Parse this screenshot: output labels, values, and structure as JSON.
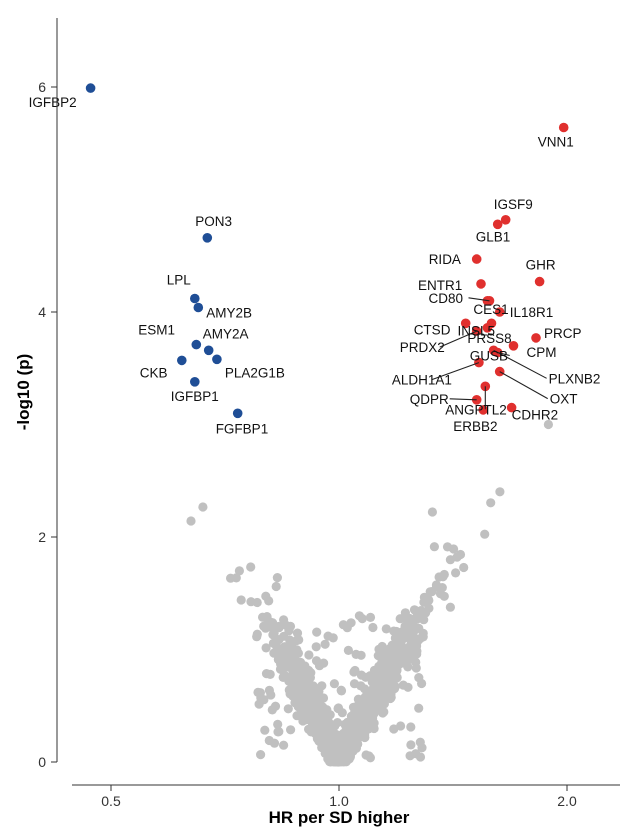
{
  "chart_data": {
    "type": "scatter",
    "xlabel": "HR per SD higher",
    "ylabel": "-log10 (p)",
    "x_scale": "log",
    "x_ticks": [
      0.5,
      1.0,
      2.0
    ],
    "x_tick_labels": [
      "0.5",
      "1.0",
      "2.0"
    ],
    "xlim": [
      0.41,
      2.4
    ],
    "y_ticks": [
      0,
      2,
      4,
      6
    ],
    "y_tick_labels": [
      "0",
      "2",
      "4",
      "6"
    ],
    "ylim": [
      -0.05,
      6.6
    ],
    "grid": false,
    "colors": {
      "non_significant": "#c0c0c0",
      "significant_lower_risk": "#1f4e96",
      "significant_higher_risk": "#e0302e"
    },
    "series": [
      {
        "color": "#1f4e96",
        "points": [
          {
            "label": "IGFBP2",
            "x": 0.47,
            "y": 5.99
          },
          {
            "label": "PON3",
            "x": 0.67,
            "y": 4.66
          },
          {
            "label": "LPL",
            "x": 0.645,
            "y": 4.12
          },
          {
            "label": "AMY2B",
            "x": 0.652,
            "y": 4.04
          },
          {
            "label": "ESM1",
            "x": 0.648,
            "y": 3.71
          },
          {
            "label": "AMY2A",
            "x": 0.673,
            "y": 3.66
          },
          {
            "label": "CKB",
            "x": 0.62,
            "y": 3.57
          },
          {
            "label": "PLA2G1B",
            "x": 0.69,
            "y": 3.58
          },
          {
            "label": "IGFBP1",
            "x": 0.645,
            "y": 3.38
          },
          {
            "label": "FGFBP1",
            "x": 0.735,
            "y": 3.1
          }
        ]
      },
      {
        "color": "#e0302e",
        "points": [
          {
            "label": "VNN1",
            "x": 1.98,
            "y": 5.64
          },
          {
            "label": "IGSF9",
            "x": 1.66,
            "y": 4.82
          },
          {
            "label": "GLB1",
            "x": 1.62,
            "y": 4.78
          },
          {
            "label": "RIDA",
            "x": 1.52,
            "y": 4.47
          },
          {
            "label": "GHR",
            "x": 1.84,
            "y": 4.27
          },
          {
            "label": "ENTR1",
            "x": 1.54,
            "y": 4.25
          },
          {
            "label": "CES1",
            "x": 1.57,
            "y": 4.1
          },
          {
            "label": "IL18R1",
            "x": 1.63,
            "y": 4.0
          },
          {
            "label": "CD80",
            "x": 1.58,
            "y": 4.1
          },
          {
            "label": "INSL5",
            "x": 1.59,
            "y": 3.9
          },
          {
            "label": "CTSD",
            "x": 1.47,
            "y": 3.9
          },
          {
            "label": "PRSS8",
            "x": 1.57,
            "y": 3.86
          },
          {
            "label": "PRCP",
            "x": 1.82,
            "y": 3.77
          },
          {
            "label": "PRDX2",
            "x": 1.52,
            "y": 3.83
          },
          {
            "label": "CPM",
            "x": 1.7,
            "y": 3.7
          },
          {
            "label": "GUSB",
            "x": 1.62,
            "y": 3.64
          },
          {
            "label": "ALDH1A1",
            "x": 1.53,
            "y": 3.55
          },
          {
            "label": "PLXNB2",
            "x": 1.6,
            "y": 3.66
          },
          {
            "label": "OXT",
            "x": 1.63,
            "y": 3.47
          },
          {
            "label": "ANGPTL2",
            "x": 1.56,
            "y": 3.34
          },
          {
            "label": "QDPR",
            "x": 1.52,
            "y": 3.22
          },
          {
            "label": "ERBB2",
            "x": 1.55,
            "y": 3.13
          },
          {
            "label": "CDHR2",
            "x": 1.69,
            "y": 3.15
          }
        ]
      }
    ]
  }
}
